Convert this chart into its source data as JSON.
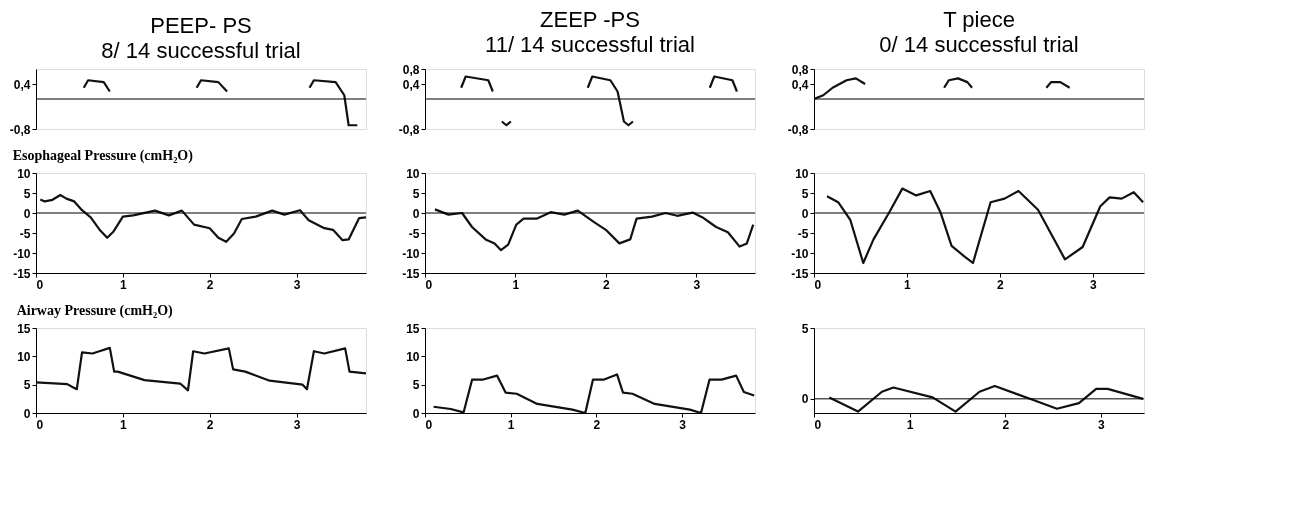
{
  "chart_data": [
    {
      "type": "line",
      "title": "PEEP- PS",
      "subtitle": "8/ 14 successful trial",
      "tick_labels": "y",
      "ref_lines": [
        {
          "axis": "y",
          "value": 0
        }
      ],
      "xlim": [
        0,
        3.8
      ],
      "ylim": [
        -0.8,
        0.8
      ],
      "yticks": [
        {
          "value": 0.4,
          "label": "0,4"
        },
        {
          "value": -0.8,
          "label": "-0,8"
        }
      ],
      "x": [
        0.55,
        0.6,
        0.78,
        0.85,
        1.2,
        1.85,
        1.9,
        2.1,
        2.2,
        2.7,
        3.15,
        3.2,
        3.45,
        3.55,
        3.6,
        3.7
      ],
      "series": [
        {
          "color": "#111111",
          "values": [
            0.3,
            0.5,
            0.45,
            0.2,
            null,
            0.3,
            0.5,
            0.45,
            0.2,
            null,
            0.3,
            0.5,
            0.45,
            0.1,
            -0.7,
            -0.7
          ]
        }
      ]
    },
    {
      "type": "line",
      "title": "ZEEP  -PS",
      "subtitle": "11/ 14 successful trial",
      "tick_labels": "y",
      "ref_lines": [
        {
          "axis": "y",
          "value": 0
        }
      ],
      "xlim": [
        0,
        3.65
      ],
      "ylim": [
        -0.8,
        0.8
      ],
      "yticks": [
        {
          "value": 0.8,
          "label": "0,8"
        },
        {
          "value": 0.4,
          "label": "0,4"
        },
        {
          "value": -0.8,
          "label": "-0,8"
        }
      ],
      "x": [
        0.4,
        0.45,
        0.7,
        0.75,
        0.8,
        0.85,
        0.9,
        0.95,
        1.5,
        1.8,
        1.85,
        2.05,
        2.13,
        2.2,
        2.25,
        2.3,
        2.8,
        3.15,
        3.2,
        3.4,
        3.45
      ],
      "series": [
        {
          "color": "#111111",
          "values": [
            0.3,
            0.6,
            0.5,
            0.2,
            null,
            -0.6,
            -0.7,
            -0.6,
            null,
            0.3,
            0.6,
            0.5,
            0.2,
            -0.6,
            -0.7,
            -0.6,
            null,
            0.3,
            0.6,
            0.5,
            0.2
          ]
        }
      ]
    },
    {
      "type": "line",
      "title": "T piece",
      "subtitle": "0/ 14 successful trial",
      "tick_labels": "y",
      "ref_lines": [
        {
          "axis": "y",
          "value": 0
        }
      ],
      "xlim": [
        0,
        3.55
      ],
      "ylim": [
        -0.8,
        0.8
      ],
      "yticks": [
        {
          "value": 0.8,
          "label": "0,8"
        },
        {
          "value": 0.4,
          "label": "0,4"
        },
        {
          "value": -0.8,
          "label": "-0,8"
        }
      ],
      "x": [
        0.0,
        0.1,
        0.2,
        0.35,
        0.45,
        0.55,
        1.0,
        1.4,
        1.45,
        1.55,
        1.65,
        1.7,
        2.0,
        2.5,
        2.55,
        2.65,
        2.75
      ],
      "series": [
        {
          "color": "#111111",
          "values": [
            0.0,
            0.1,
            0.3,
            0.5,
            0.55,
            0.4,
            null,
            0.3,
            0.5,
            0.55,
            0.45,
            0.3,
            null,
            0.3,
            0.45,
            0.45,
            0.3
          ]
        }
      ]
    },
    {
      "type": "line",
      "title": "Esophageal Pressure (cmH₂O)",
      "ref_lines": [
        {
          "axis": "y",
          "value": 0
        }
      ],
      "xlim": [
        0,
        3.8
      ],
      "ylim": [
        -15,
        10
      ],
      "yticks": [
        10,
        5,
        0,
        -5,
        -10,
        -15
      ],
      "xticks": [
        0,
        1,
        2,
        3
      ],
      "x": [
        0.05,
        0.1,
        0.19,
        0.28,
        0.35,
        0.44,
        0.53,
        0.63,
        0.74,
        0.82,
        0.89,
        1.0,
        1.12,
        1.37,
        1.53,
        1.68,
        1.82,
        2.0,
        2.1,
        2.19,
        2.28,
        2.37,
        2.53,
        2.72,
        2.86,
        3.04,
        3.14,
        3.32,
        3.42,
        3.53,
        3.6,
        3.72,
        3.8
      ],
      "series": [
        {
          "color": "#111111",
          "values": [
            3.4,
            2.9,
            3.3,
            4.5,
            3.6,
            2.9,
            0.7,
            -1.1,
            -4.4,
            -6.2,
            -4.7,
            -0.9,
            -0.6,
            0.6,
            -0.6,
            0.6,
            -2.9,
            -3.8,
            -6.2,
            -7.2,
            -5.1,
            -1.5,
            -0.9,
            0.6,
            -0.4,
            0.7,
            -1.8,
            -3.8,
            -4.2,
            -6.8,
            -6.6,
            -1.3,
            -1.1
          ]
        }
      ]
    },
    {
      "type": "line",
      "ref_lines": [
        {
          "axis": "y",
          "value": 0
        }
      ],
      "xlim": [
        0,
        3.65
      ],
      "ylim": [
        -15,
        10
      ],
      "yticks": [
        10,
        5,
        0,
        -5,
        -10,
        -15
      ],
      "xticks": [
        0,
        1,
        2,
        3
      ],
      "x": [
        0.11,
        0.26,
        0.41,
        0.52,
        0.67,
        0.77,
        0.84,
        0.92,
        1.01,
        1.09,
        1.24,
        1.39,
        1.54,
        1.69,
        1.87,
        2.0,
        2.15,
        2.27,
        2.34,
        2.51,
        2.66,
        2.79,
        2.96,
        3.07,
        3.22,
        3.35,
        3.48,
        3.56,
        3.63
      ],
      "series": [
        {
          "color": "#111111",
          "values": [
            0.9,
            -0.4,
            0,
            -3.5,
            -6.6,
            -7.6,
            -9.3,
            -7.9,
            -2.9,
            -1.4,
            -1.4,
            0.2,
            -0.4,
            0.6,
            -2.3,
            -4.2,
            -7.6,
            -6.6,
            -1.4,
            -0.9,
            0,
            -0.7,
            0.1,
            -1.1,
            -3.5,
            -4.8,
            -8.4,
            -7.6,
            -2.9
          ]
        }
      ]
    },
    {
      "type": "line",
      "ref_lines": [
        {
          "axis": "y",
          "value": 0
        }
      ],
      "xlim": [
        0,
        3.55
      ],
      "ylim": [
        -15,
        10
      ],
      "yticks": [
        10,
        5,
        0,
        -5,
        -10,
        -15
      ],
      "xticks": [
        0,
        1,
        2,
        3
      ],
      "x": [
        0.14,
        0.26,
        0.39,
        0.53,
        0.64,
        0.81,
        0.95,
        1.1,
        1.25,
        1.36,
        1.48,
        1.61,
        1.71,
        1.9,
        2.05,
        2.2,
        2.41,
        2.7,
        2.89,
        3.08,
        3.18,
        3.31,
        3.44,
        3.54
      ],
      "series": [
        {
          "color": "#111111",
          "values": [
            4.2,
            2.7,
            -1.7,
            -12.5,
            -6.6,
            0.2,
            6.1,
            4.4,
            5.5,
            0.2,
            -8.2,
            -10.7,
            -12.5,
            2.7,
            3.6,
            5.5,
            0.8,
            -11.6,
            -8.5,
            1.7,
            3.9,
            3.6,
            5.2,
            2.7
          ]
        }
      ]
    },
    {
      "type": "line",
      "title": "Airway Pressure (cmH₂O)",
      "xlim": [
        0,
        3.8
      ],
      "ylim": [
        0,
        15
      ],
      "yticks": [
        0,
        5,
        10,
        15
      ],
      "xticks": [
        0,
        1,
        2,
        3
      ],
      "x": [
        0,
        0.36,
        0.43,
        0.47,
        0.53,
        0.65,
        0.73,
        0.85,
        0.9,
        0.94,
        1.25,
        1.66,
        1.75,
        1.81,
        1.94,
        2.22,
        2.27,
        2.41,
        2.69,
        3.07,
        3.12,
        3.2,
        3.32,
        3.56,
        3.61,
        3.8
      ],
      "series": [
        {
          "color": "#111111",
          "values": [
            5.4,
            5.1,
            4.5,
            4.2,
            10.7,
            10.5,
            10.9,
            11.5,
            7.3,
            7.3,
            5.8,
            5.2,
            4.0,
            10.9,
            10.5,
            11.4,
            7.7,
            7.3,
            5.7,
            5.0,
            4.2,
            10.9,
            10.5,
            11.4,
            7.3,
            7.0
          ]
        }
      ]
    },
    {
      "type": "line",
      "xlim": [
        0,
        3.85
      ],
      "ylim": [
        0,
        15
      ],
      "yticks": [
        0,
        5,
        10,
        15
      ],
      "xticks": [
        0,
        1,
        2,
        3
      ],
      "x": [
        0.1,
        0.3,
        0.45,
        0.55,
        0.68,
        0.84,
        0.94,
        1.07,
        1.31,
        1.72,
        1.87,
        1.96,
        2.09,
        2.24,
        2.31,
        2.42,
        2.68,
        3.09,
        3.22,
        3.32,
        3.46,
        3.63,
        3.72,
        3.84
      ],
      "series": [
        {
          "color": "#111111",
          "values": [
            1.1,
            0.7,
            0.1,
            5.9,
            5.9,
            6.6,
            3.6,
            3.4,
            1.6,
            0.6,
            0,
            5.9,
            5.9,
            6.8,
            3.6,
            3.4,
            1.6,
            0.6,
            0,
            5.9,
            5.9,
            6.6,
            3.7,
            3.1
          ]
        }
      ]
    },
    {
      "type": "line",
      "ref_lines": [
        {
          "axis": "y",
          "value": 0
        }
      ],
      "xlim": [
        0,
        3.45
      ],
      "ylim": [
        -1,
        5
      ],
      "yticks": [
        0,
        5
      ],
      "xticks": [
        0,
        1,
        2,
        3
      ],
      "x": [
        0.16,
        0.46,
        0.71,
        0.83,
        1.24,
        1.48,
        1.73,
        1.89,
        2.3,
        2.54,
        2.77,
        2.95,
        3.07,
        3.44
      ],
      "series": [
        {
          "color": "#111111",
          "values": [
            0.1,
            -0.9,
            0.5,
            0.8,
            0.1,
            -0.9,
            0.5,
            0.9,
            -0.1,
            -0.7,
            -0.3,
            0.7,
            0.7,
            0
          ]
        }
      ]
    }
  ]
}
